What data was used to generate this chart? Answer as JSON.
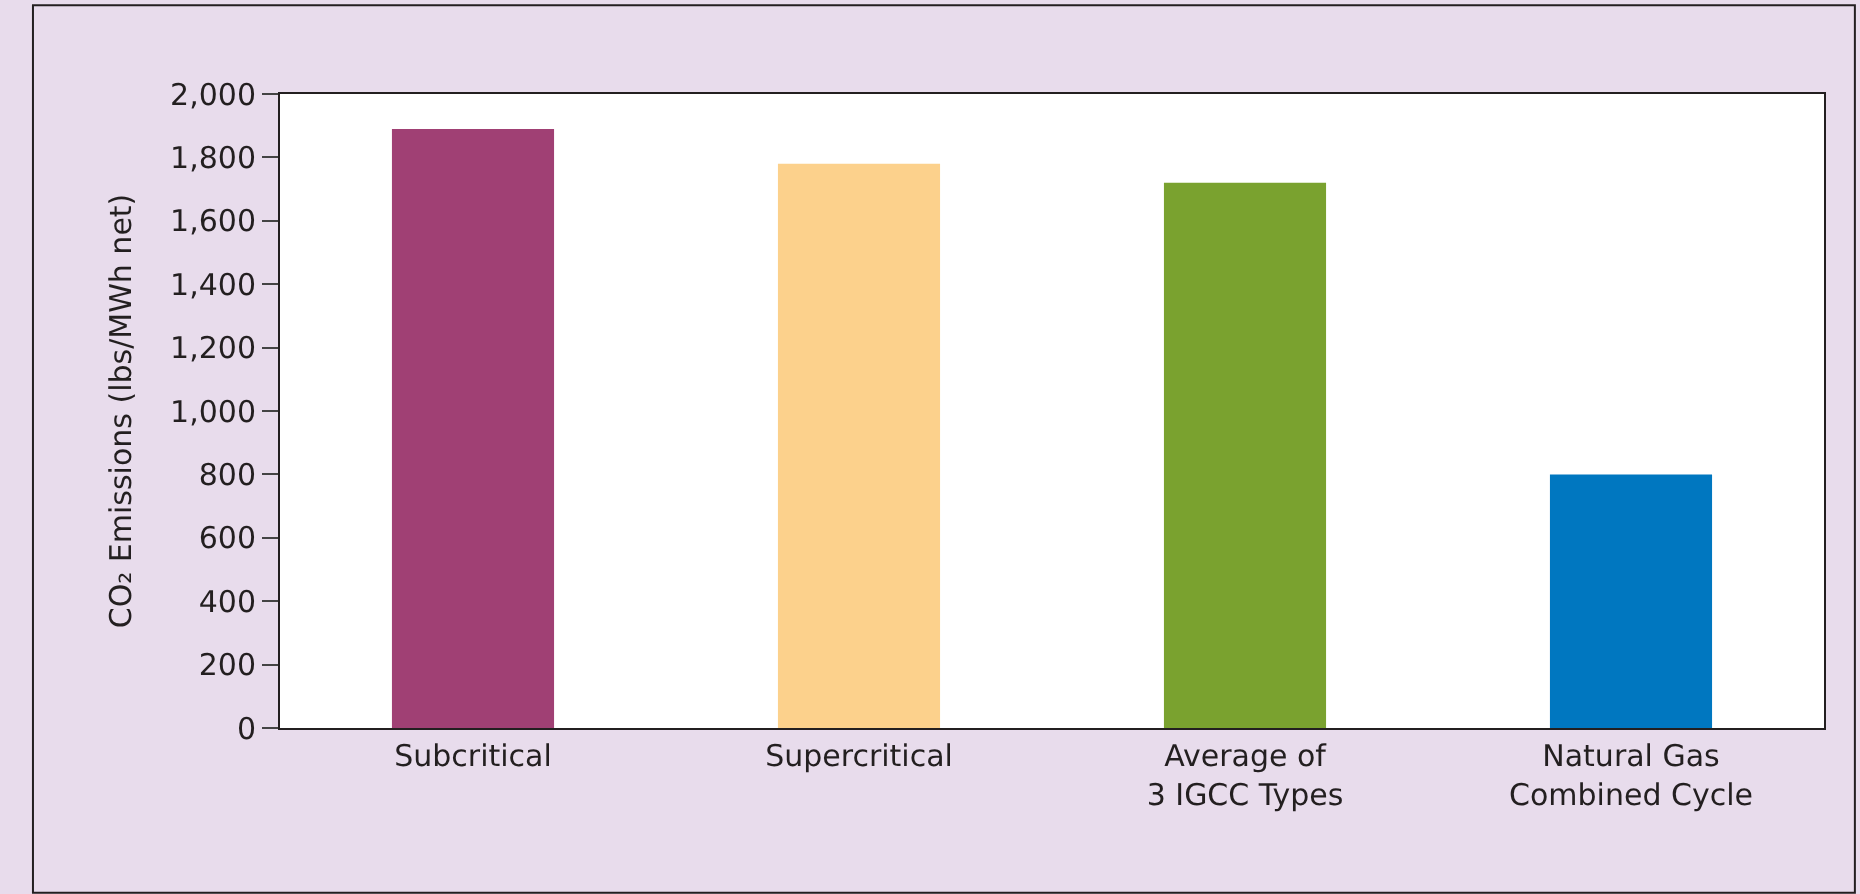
{
  "chart_data": {
    "type": "bar",
    "ylabel": "CO₂ Emissions (lbs/MWh net)",
    "categories": [
      "Subcritical",
      "Supercritical",
      "Average of\n3 IGCC Types",
      "Natural Gas\nCombined Cycle"
    ],
    "values": [
      1890,
      1780,
      1720,
      800
    ],
    "colors": [
      "#a04074",
      "#fcd18c",
      "#7aa22f",
      "#0077c0"
    ],
    "ylim": [
      0,
      2000
    ],
    "yticks": [
      {
        "value": 0,
        "label": "0"
      },
      {
        "value": 200,
        "label": "200"
      },
      {
        "value": 400,
        "label": "400"
      },
      {
        "value": 600,
        "label": "600"
      },
      {
        "value": 800,
        "label": "800"
      },
      {
        "value": 1000,
        "label": "1,000"
      },
      {
        "value": 1200,
        "label": "1,200"
      },
      {
        "value": 1400,
        "label": "1,400"
      },
      {
        "value": 1600,
        "label": "1,600"
      },
      {
        "value": 1800,
        "label": "1,800"
      },
      {
        "value": 2000,
        "label": "2,000"
      }
    ]
  }
}
